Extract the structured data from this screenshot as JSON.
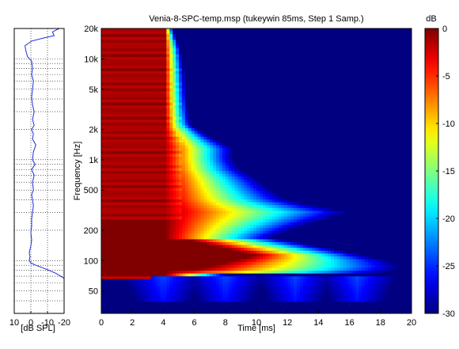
{
  "chart_data": [
    {
      "type": "line",
      "panel": "side-spectrum",
      "xlabel": "[dB SPL]",
      "x_ticks": [
        10,
        0,
        -10,
        -20
      ],
      "x_tick_labels": [
        "10",
        "0",
        "-10",
        "-20"
      ],
      "xlim": [
        10,
        -20
      ],
      "ylim_hz": [
        30,
        20000
      ],
      "y_scale": "log",
      "grid": true,
      "line_color": "#1f2fd6",
      "series": [
        {
          "freq_hz": [
            20000,
            18500,
            17000,
            16000,
            15000,
            13500,
            12000,
            10500,
            9500,
            8000,
            7000,
            6000,
            5000,
            4200,
            3500,
            3000,
            2500,
            2200,
            2000,
            1800,
            1600,
            1400,
            1200,
            1000,
            900,
            800,
            700,
            600,
            500,
            450,
            400,
            350,
            300,
            260,
            220,
            190,
            160,
            140,
            120,
            110,
            100,
            95,
            90,
            85,
            80,
            75,
            70,
            65
          ],
          "db_spl": [
            -17,
            -13,
            -14,
            -7,
            -0.5,
            3.5,
            3,
            2,
            -0.5,
            -1,
            -0.5,
            -1.5,
            -1,
            -0.5,
            -1,
            -2,
            -1,
            -2,
            -0.5,
            -1.5,
            -1,
            -3,
            -1.5,
            -1,
            -2.5,
            -0.5,
            -2,
            -1,
            -1.5,
            -0.5,
            -1,
            -1.5,
            -1,
            -0.5,
            -0.5,
            0,
            -0.5,
            0,
            1,
            0.5,
            1,
            0,
            -3,
            -7,
            -11,
            -15,
            -18,
            -21
          ]
        }
      ]
    },
    {
      "type": "heatmap",
      "panel": "cumulative-spectral-decay",
      "title": "Venia-8-SPC-temp.msp (tukeywin 85ms, Step 1 Samp.)",
      "xlabel": "Time [ms]",
      "ylabel": "Frequency [Hz]",
      "xlim": [
        0,
        20
      ],
      "ylim": [
        30,
        20000
      ],
      "y_scale": "log",
      "x_ticks": [
        0,
        2,
        4,
        6,
        8,
        10,
        12,
        14,
        16,
        18,
        20
      ],
      "y_ticks": [
        50,
        100,
        200,
        500,
        1000,
        2000,
        5000,
        10000,
        20000
      ],
      "y_tick_labels": [
        "50",
        "100",
        "200",
        "500",
        "1k",
        "2k",
        "5k",
        "10k",
        "20k"
      ],
      "colorbar": {
        "label": "dB",
        "range": [
          -30,
          0
        ],
        "ticks": [
          0,
          -5,
          -10,
          -15,
          -20,
          -25,
          -30
        ],
        "tick_labels": [
          "0",
          "-5",
          "-10",
          "-15",
          "-20",
          "-25",
          "-30"
        ],
        "colormap": "jet"
      },
      "decay_end_ms": {
        "freq_hz": [
          30,
          45,
          60,
          70,
          75,
          85,
          100,
          130,
          170,
          220,
          300,
          400,
          500,
          650,
          800,
          1000,
          1300,
          1700,
          2200,
          3000,
          4000,
          6000,
          9000,
          13000,
          17000,
          20000
        ],
        "time_ms": [
          0,
          0,
          0,
          0.5,
          18,
          19.5,
          18.5,
          15,
          11,
          13,
          16,
          12,
          11,
          10,
          9,
          8.5,
          8.5,
          7,
          5.8,
          5.6,
          5.5,
          5.4,
          5.3,
          5.1,
          4.8,
          4.6
        ]
      },
      "low_freq_ridges_ms": [
        4,
        8,
        12.5,
        16.5
      ]
    }
  ]
}
